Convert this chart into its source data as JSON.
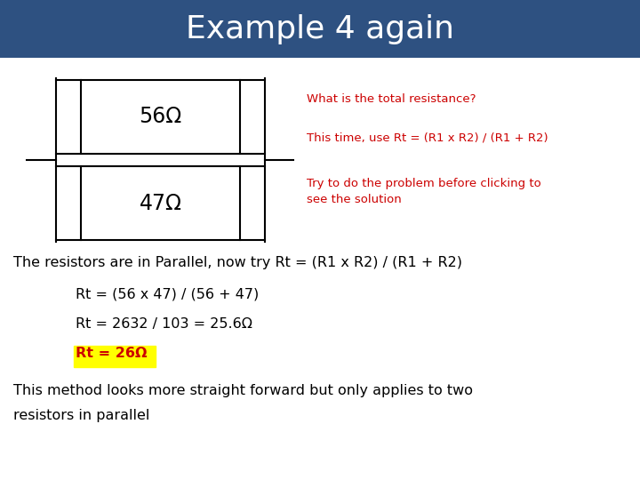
{
  "title": "Example 4 again",
  "title_bg_color": "#2E5181",
  "title_text_color": "#FFFFFF",
  "bg_color": "#FFFFFF",
  "resistor1_label": "56Ω",
  "resistor2_label": "47Ω",
  "red_color": "#CC0000",
  "question_line1": "What is the total resistance?",
  "question_line2": "This time, use Rt = (R1 x R2) / (R1 + R2)",
  "question_line3": "Try to do the problem before clicking to",
  "question_line3b": "see the solution",
  "body_line1": "The resistors are in Parallel, now try Rt = (R1 x R2) / (R1 + R2)",
  "body_line2": "Rt = (56 x 47) / (56 + 47)",
  "body_line3": "Rt = 2632 / 103 = 25.6Ω",
  "body_line4": "Rt = 26Ω",
  "body_line5": "This method looks more straight forward but only applies to two",
  "body_line6": "resistors in parallel",
  "highlight_color": "#FFFF00",
  "highlight_text_color": "#CC0000",
  "title_fontsize": 26,
  "red_fontsize": 9.5,
  "body_fontsize": 11.5,
  "resistor_fontsize": 17
}
